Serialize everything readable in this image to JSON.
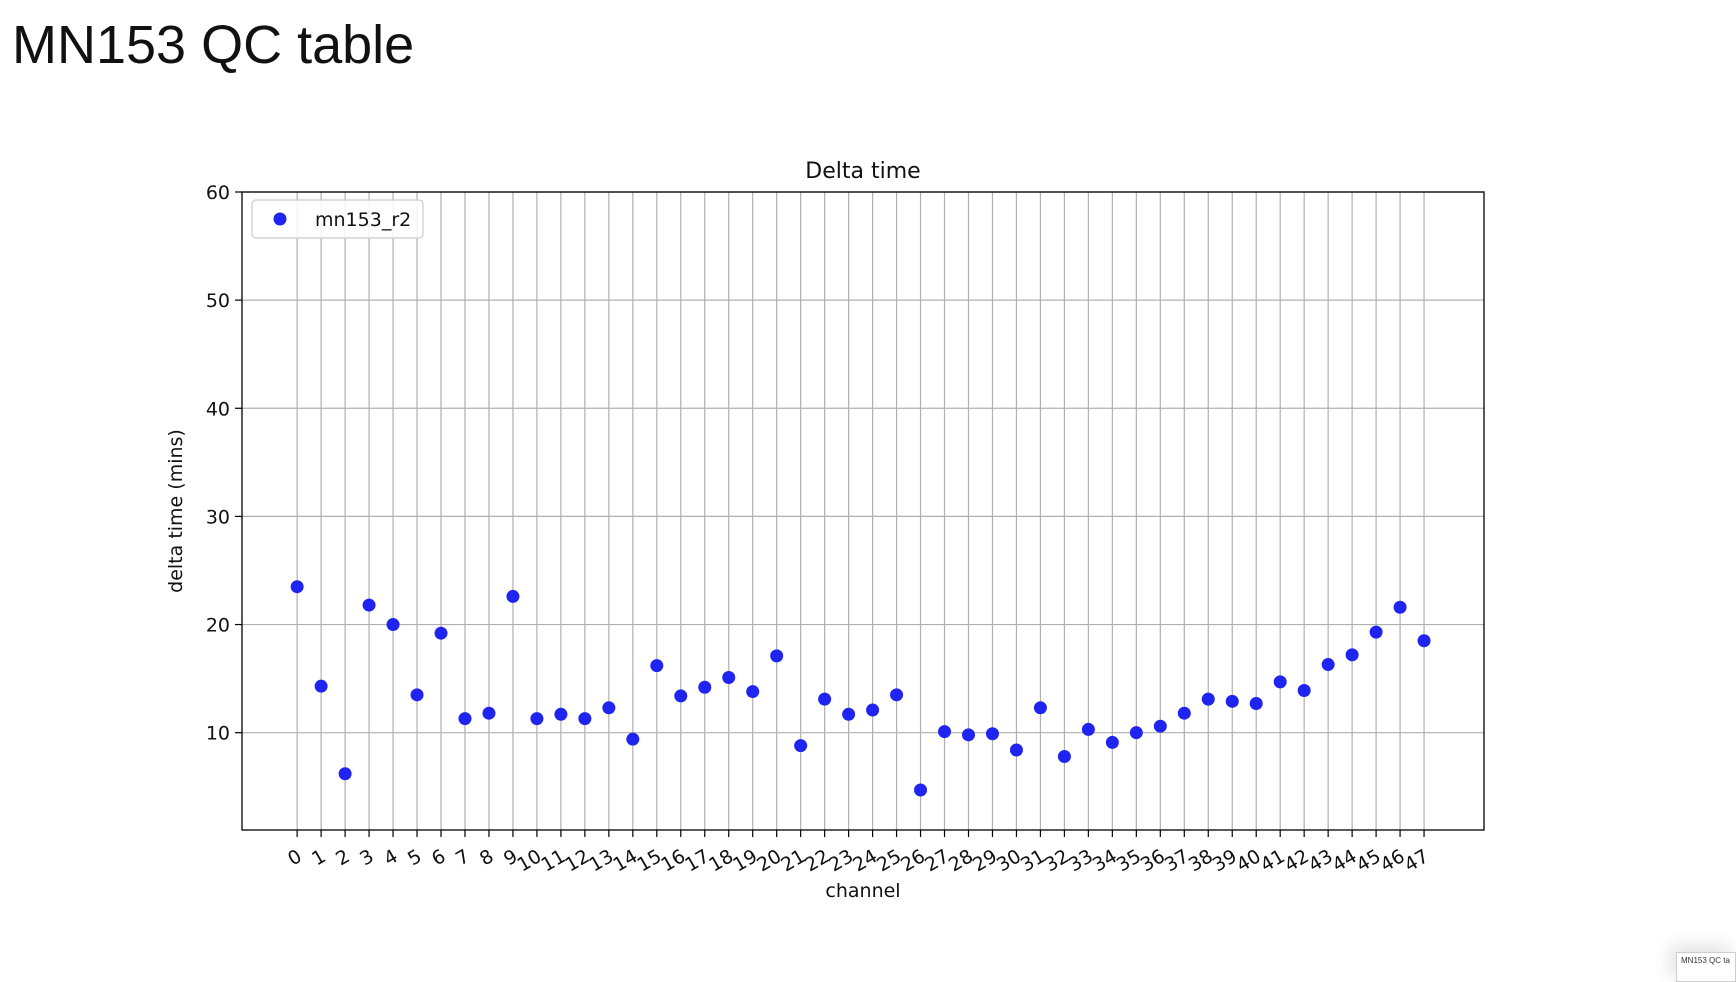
{
  "slide": {
    "title": "MN153 QC table",
    "thumbnail_label": "MN153 QC ta"
  },
  "chart_data": {
    "type": "scatter",
    "title": "Delta time",
    "xlabel": "channel",
    "ylabel": "delta time (mins)",
    "xlim": [
      -2.3,
      49.5
    ],
    "ylim": [
      1,
      60
    ],
    "yticks": [
      10,
      20,
      30,
      40,
      50,
      60
    ],
    "x": [
      0,
      1,
      2,
      3,
      4,
      5,
      6,
      7,
      8,
      9,
      10,
      11,
      12,
      13,
      14,
      15,
      16,
      17,
      18,
      19,
      20,
      21,
      22,
      23,
      24,
      25,
      26,
      27,
      28,
      29,
      30,
      31,
      32,
      33,
      34,
      35,
      36,
      37,
      38,
      39,
      40,
      41,
      42,
      43,
      44,
      45,
      46,
      47
    ],
    "grid": true,
    "legend_position": "upper-left",
    "series": [
      {
        "name": "mn153_r2",
        "color": "#1f24f0",
        "values": [
          23.5,
          14.3,
          6.2,
          21.8,
          20.0,
          13.5,
          19.2,
          11.3,
          11.8,
          22.6,
          11.3,
          11.7,
          11.3,
          12.3,
          9.4,
          16.2,
          13.4,
          14.2,
          15.1,
          13.8,
          17.1,
          8.8,
          13.1,
          11.7,
          12.1,
          13.5,
          4.7,
          10.1,
          9.8,
          9.9,
          8.4,
          12.3,
          7.8,
          10.3,
          9.1,
          10.0,
          10.6,
          11.8,
          13.1,
          12.9,
          12.7,
          14.7,
          13.9,
          16.3,
          17.2,
          19.3,
          21.6,
          18.5
        ]
      }
    ]
  }
}
